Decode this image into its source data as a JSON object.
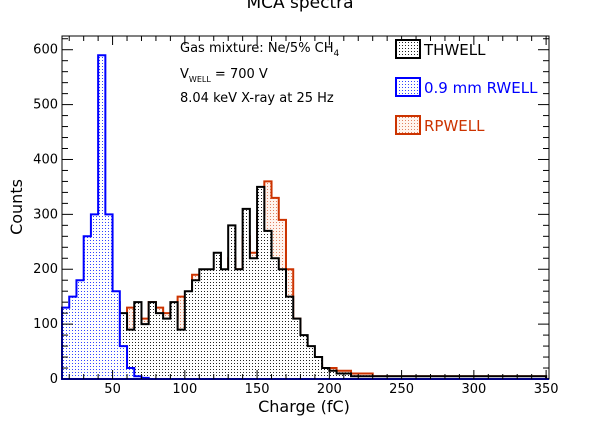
{
  "chart_data": {
    "type": "histogram",
    "title": "MCA spectra",
    "xlabel": "Charge (fC)",
    "ylabel": "Counts",
    "xlim": [
      15,
      352
    ],
    "ylim": [
      0,
      625
    ],
    "x_ticks": [
      50,
      100,
      150,
      200,
      250,
      300,
      350
    ],
    "y_ticks": [
      0,
      100,
      200,
      300,
      400,
      500,
      600
    ],
    "bin_width": 5,
    "annotations": {
      "gas": "Gas mixture: Ne/5% CH",
      "gas_sub": "4",
      "voltage_prefix": "V",
      "voltage_sub": "WELL",
      "voltage_suffix": " = 700 V",
      "xray": "8.04 keV X-ray at 25 Hz"
    },
    "legend_position": "top-right",
    "series": [
      {
        "name": "THWELL",
        "color": "#000000",
        "fill": "dots-black",
        "x_start": 20,
        "values": [
          0,
          0,
          110,
          60,
          150,
          100,
          140,
          120,
          90,
          140,
          100,
          140,
          120,
          110,
          140,
          90,
          160,
          180,
          200,
          200,
          230,
          200,
          280,
          200,
          310,
          220,
          350,
          270,
          220,
          200,
          150,
          110,
          80,
          60,
          40,
          20,
          15,
          10,
          10,
          5,
          5,
          5,
          5,
          5,
          5,
          5,
          5,
          5,
          5,
          5,
          5,
          5,
          5,
          5,
          5,
          5,
          5,
          5,
          5,
          5,
          5,
          5,
          5,
          5,
          5,
          5
        ]
      },
      {
        "name": "0.9 mm RWELL",
        "color": "#0000ff",
        "fill": "dots-blue",
        "x_start": 15,
        "values": [
          130,
          150,
          180,
          260,
          300,
          590,
          300,
          160,
          60,
          20,
          5,
          2,
          0,
          0,
          0,
          0,
          0,
          0,
          0,
          0,
          0,
          0,
          0,
          0,
          0,
          0,
          0,
          0,
          0,
          0,
          0,
          0,
          0,
          0,
          0,
          0,
          0,
          0,
          0,
          0,
          0,
          0,
          0,
          0,
          0,
          0,
          0,
          0,
          0,
          0,
          0,
          0,
          0,
          0,
          0,
          0,
          0,
          0,
          0,
          0,
          0,
          0,
          0,
          0,
          0,
          0,
          0,
          0
        ]
      },
      {
        "name": "RPWELL",
        "color": "#cc3300",
        "fill": "dots-orange",
        "x_start": 20,
        "values": [
          0,
          0,
          120,
          90,
          110,
          100,
          120,
          90,
          130,
          110,
          110,
          140,
          130,
          120,
          110,
          150,
          140,
          190,
          160,
          180,
          190,
          170,
          220,
          200,
          260,
          230,
          300,
          360,
          330,
          290,
          200,
          110,
          60,
          30,
          25,
          20,
          20,
          15,
          15,
          10,
          10,
          10,
          5,
          5,
          5,
          5,
          5,
          5,
          5,
          5,
          5,
          5,
          5,
          5,
          5,
          5,
          5,
          5,
          5,
          5,
          5,
          5,
          5,
          5,
          5,
          5
        ]
      }
    ]
  }
}
